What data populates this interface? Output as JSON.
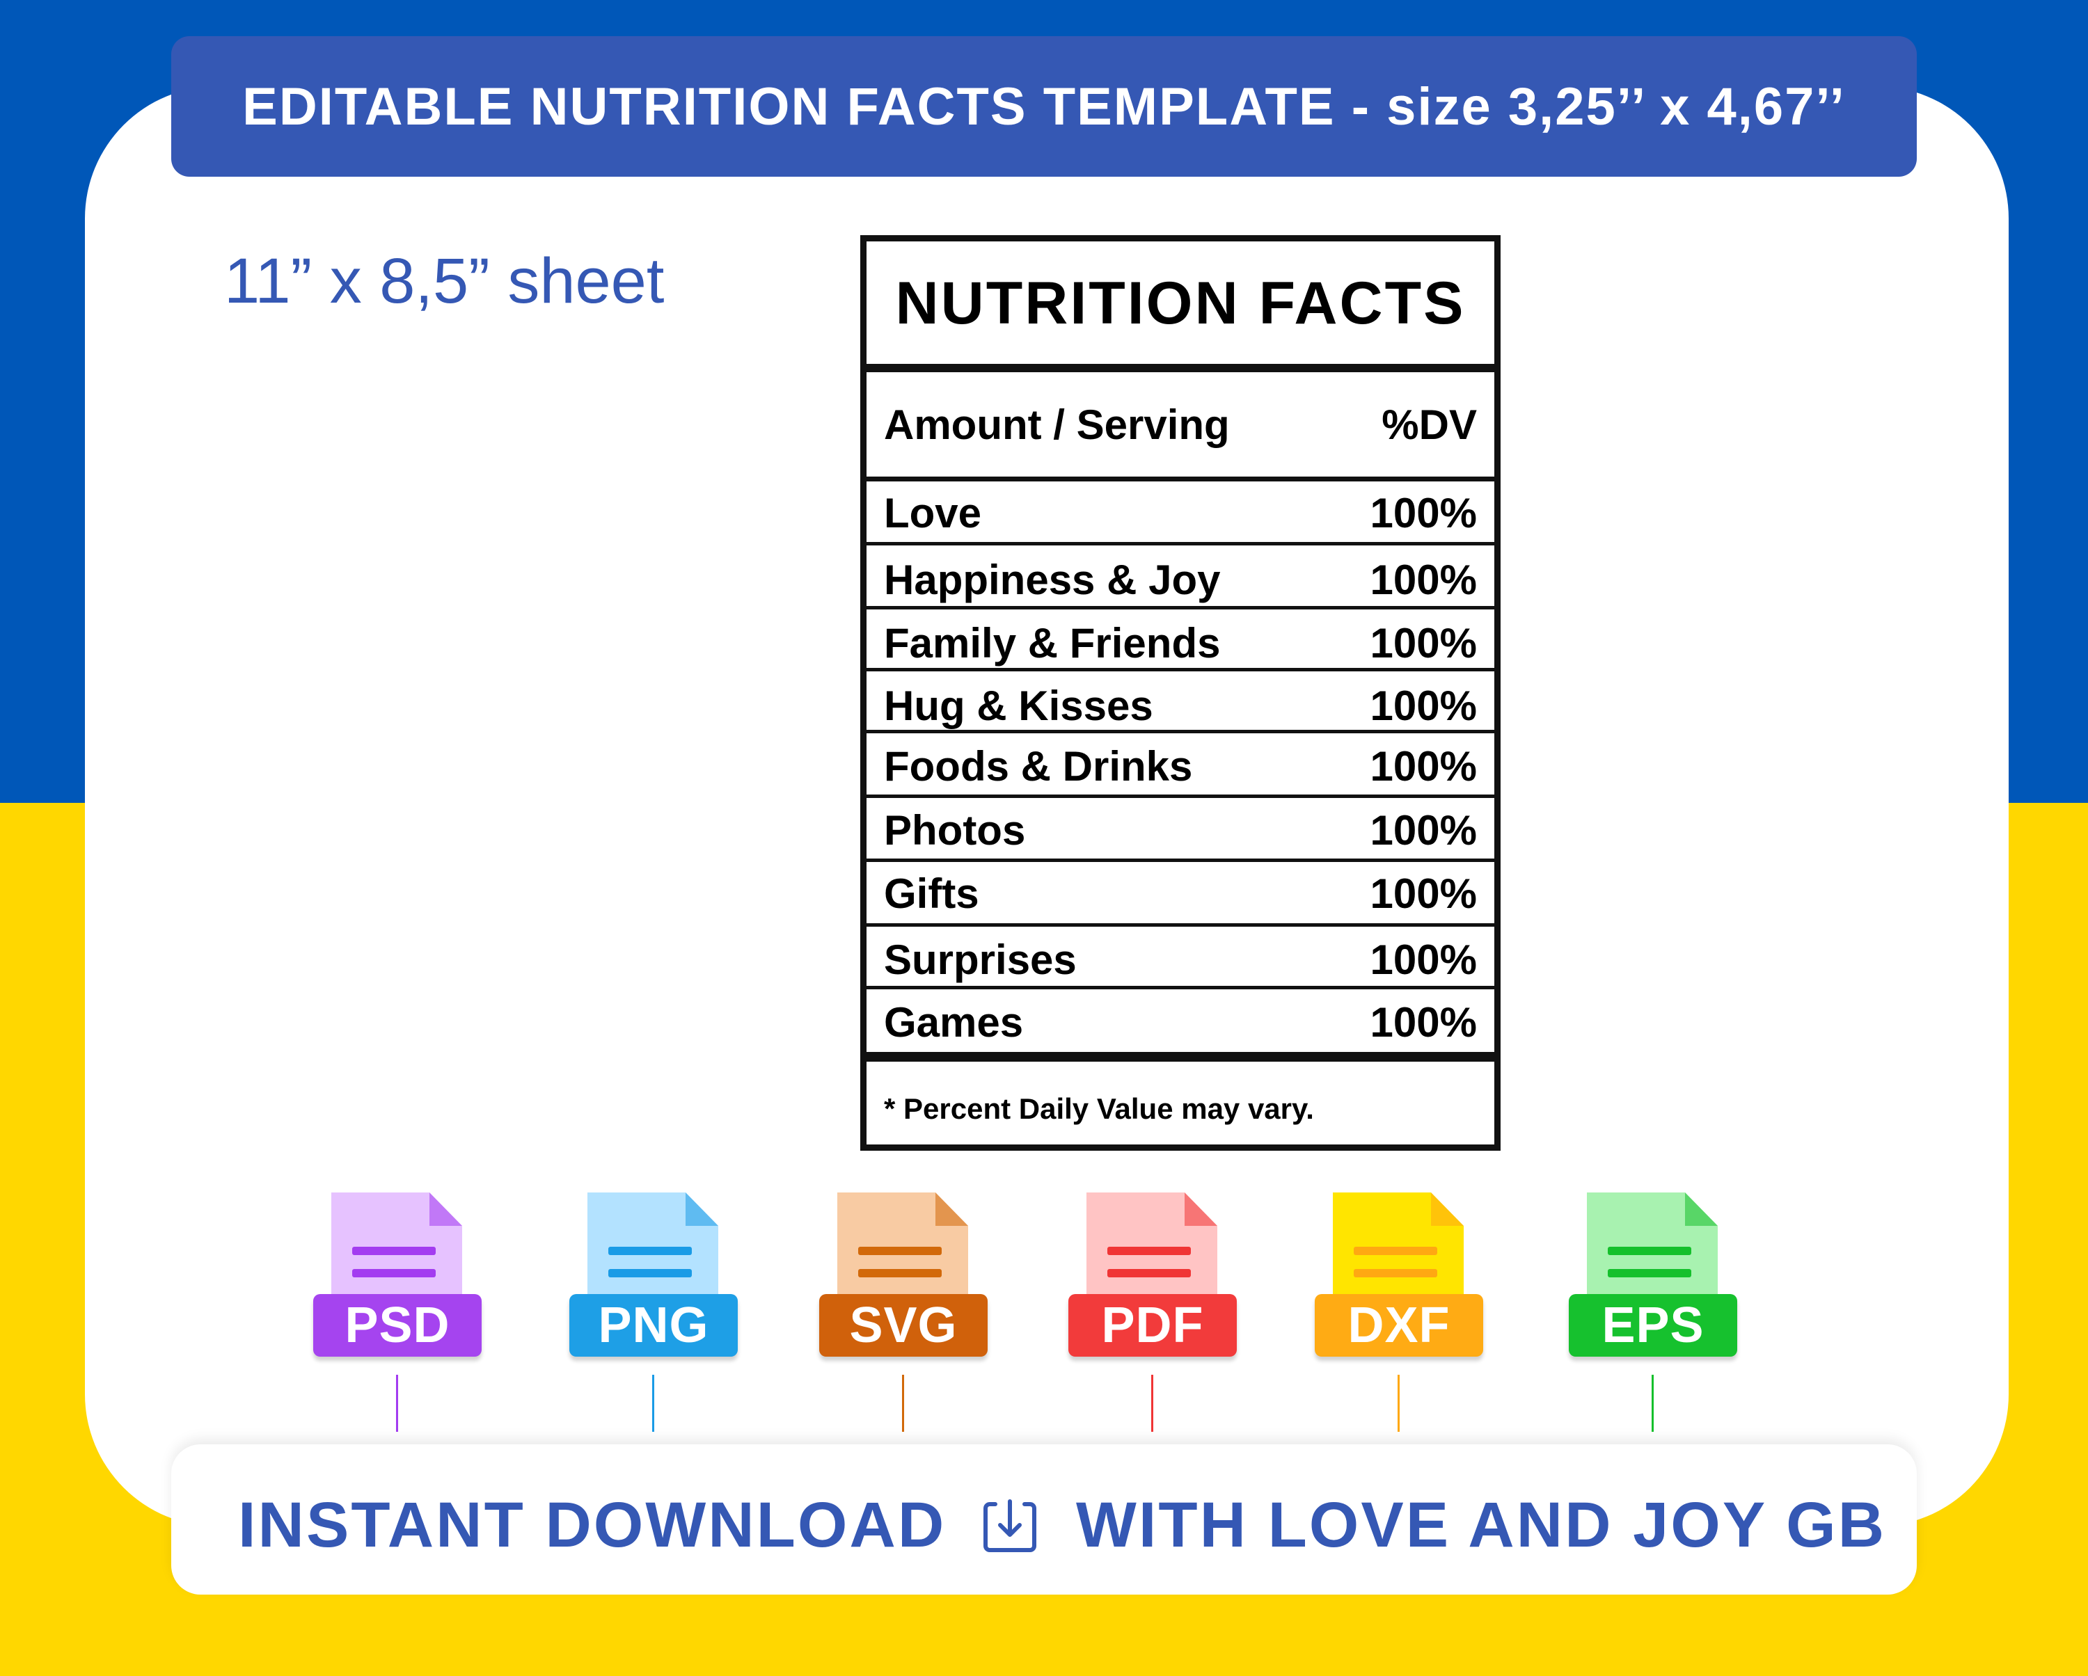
{
  "header": {
    "title": "EDITABLE NUTRITION FACTS TEMPLATE - size 3,25’’ x 4,67’’"
  },
  "sheet_label": "11” x 8,5” sheet",
  "nutrition_label": {
    "title": "NUTRITION FACTS",
    "header_left": "Amount / Serving",
    "header_right": "%DV",
    "rows": [
      {
        "name": "Love",
        "value": "100%"
      },
      {
        "name": "Happiness & Joy",
        "value": "100%"
      },
      {
        "name": "Family & Friends",
        "value": "100%"
      },
      {
        "name": "Hug & Kisses",
        "value": "100%"
      },
      {
        "name": "Foods & Drinks",
        "value": "100%"
      },
      {
        "name": "Photos",
        "value": "100%"
      },
      {
        "name": "Gifts",
        "value": "100%"
      },
      {
        "name": "Surprises",
        "value": "100%"
      },
      {
        "name": "Games",
        "value": "100%"
      }
    ],
    "footnote": "* Percent Daily Value may vary."
  },
  "formats": [
    {
      "label": "PSD",
      "icon": "psd-file-icon",
      "page_color": "#e6c2ff",
      "accent": "#a33cf0",
      "badge_color": "#a544ef"
    },
    {
      "label": "PNG",
      "icon": "png-file-icon",
      "page_color": "#b3e2ff",
      "accent": "#1a9be6",
      "badge_color": "#1e9fe6"
    },
    {
      "label": "SVG",
      "icon": "svg-file-icon",
      "page_color": "#f8cba3",
      "accent": "#d2690a",
      "badge_color": "#d0610b"
    },
    {
      "label": "PDF",
      "icon": "pdf-file-icon",
      "page_color": "#ffc4c4",
      "accent": "#f03535",
      "badge_color": "#f23b3b"
    },
    {
      "label": "DXF",
      "icon": "dxf-file-icon",
      "page_color": "#ffe500",
      "accent": "#ffa812",
      "badge_color": "#ffab14"
    },
    {
      "label": "EPS",
      "icon": "eps-file-icon",
      "page_color": "#a8f2b0",
      "accent": "#15c02c",
      "badge_color": "#16c12e"
    }
  ],
  "footer": {
    "left_text": "INSTANT DOWNLOAD",
    "icon": "download-icon",
    "right_text": "WITH LOVE AND JOY GB"
  },
  "colors": {
    "flag_blue": "#0057b8",
    "flag_yellow": "#ffd700",
    "brand_blue": "#3558b4"
  }
}
